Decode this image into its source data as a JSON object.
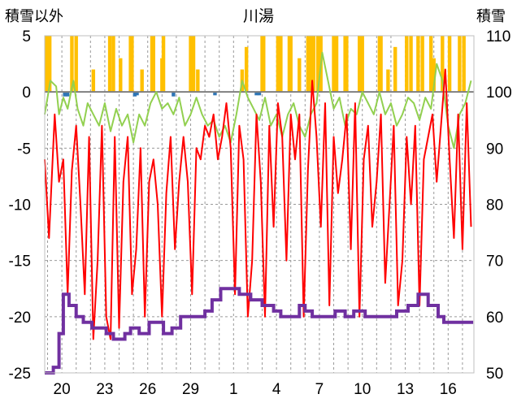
{
  "chart_data": {
    "type": "line",
    "title": "川湯",
    "left_axis_label": "積雪以外",
    "right_axis_label": "積雪",
    "left_ylim": [
      -25,
      5
    ],
    "left_yticks": [
      5,
      0,
      -5,
      -10,
      -15,
      -20,
      -25
    ],
    "right_ylim": [
      50,
      110
    ],
    "right_yticks": [
      110,
      100,
      90,
      80,
      70,
      60,
      50
    ],
    "x_range_days": [
      0,
      30
    ],
    "x_ticks": [
      {
        "day": 1.2,
        "label": "20"
      },
      {
        "day": 4.2,
        "label": "23"
      },
      {
        "day": 7.2,
        "label": "26"
      },
      {
        "day": 10.2,
        "label": "29"
      },
      {
        "day": 13.2,
        "label": "1"
      },
      {
        "day": 16.2,
        "label": "4"
      },
      {
        "day": 19.2,
        "label": "7"
      },
      {
        "day": 22.2,
        "label": "10"
      },
      {
        "day": 25.2,
        "label": "13"
      },
      {
        "day": 28.2,
        "label": "16"
      }
    ],
    "series": [
      {
        "name": "sunshine",
        "axis": "left",
        "style": "bars",
        "color": "#ffc000",
        "x": [
          0.15,
          0.25,
          0.35,
          1.9,
          2.2,
          3.4,
          4.55,
          4.8,
          5.3,
          6.0,
          6.1,
          6.8,
          7.5,
          7.6,
          8.2,
          8.3,
          10.2,
          10.4,
          10.7,
          13.8,
          14.1,
          15.2,
          15.3,
          16.3,
          16.5,
          17.1,
          17.2,
          17.8,
          18.4,
          18.6,
          18.8,
          19.1,
          19.3,
          20.2,
          20.4,
          21.0,
          21.1,
          22.0,
          22.2,
          23.4,
          23.5,
          24.0,
          24.5,
          25.3,
          25.6,
          26.1,
          26.4,
          27.0,
          27.2,
          27.8,
          28.3,
          29.0,
          29.3
        ],
        "values": [
          5,
          5,
          5,
          5,
          5,
          2,
          5,
          5,
          3,
          5,
          5,
          2,
          5,
          5,
          3,
          5,
          5,
          5,
          2,
          2,
          4,
          5,
          5,
          5,
          5,
          5,
          5,
          3,
          5,
          5,
          5,
          5,
          5,
          5,
          5,
          5,
          5,
          5,
          5,
          5,
          5,
          2,
          4,
          5,
          5,
          5,
          5,
          5,
          3,
          5,
          5,
          5,
          5
        ]
      },
      {
        "name": "precipitation",
        "axis": "left",
        "style": "bars",
        "color": "#2e75b6",
        "x": [
          1.4,
          1.6,
          6.3,
          6.45,
          9.0,
          11.9,
          14.8,
          15.0
        ],
        "values": [
          -0.4,
          -0.4,
          -0.4,
          -0.3,
          -0.4,
          -0.3,
          -0.3,
          -0.3
        ]
      },
      {
        "name": "wind_speed",
        "axis": "left",
        "style": "line",
        "color": "#92d050",
        "x": [
          0,
          0.4,
          0.8,
          1.0,
          1.3,
          1.6,
          2.0,
          2.3,
          2.7,
          3.0,
          3.4,
          3.8,
          4.2,
          4.6,
          5.0,
          5.4,
          5.8,
          6.2,
          6.6,
          7.0,
          7.4,
          7.8,
          8.2,
          8.6,
          9.0,
          9.4,
          9.8,
          10.2,
          10.6,
          11.0,
          11.4,
          11.8,
          12.2,
          12.6,
          13.0,
          13.4,
          13.8,
          14.2,
          14.6,
          15.0,
          15.4,
          15.8,
          16.2,
          16.6,
          17.0,
          17.4,
          17.8,
          18.2,
          18.6,
          19.0,
          19.4,
          19.8,
          20.2,
          20.6,
          21.0,
          21.4,
          21.8,
          22.2,
          22.6,
          23.0,
          23.4,
          23.8,
          24.2,
          24.6,
          25.0,
          25.4,
          25.8,
          26.2,
          26.6,
          27.0,
          27.4,
          27.8,
          28.2,
          28.6,
          29.0,
          29.4,
          29.8
        ],
        "values": [
          -2,
          1,
          0.5,
          -2,
          -0.5,
          -1.5,
          1,
          -1.5,
          -3,
          -1,
          -2,
          -3,
          -1,
          -3.5,
          -1.5,
          -3,
          -2,
          -4.5,
          -2,
          -3,
          -1,
          0,
          -1.5,
          -1,
          -2,
          -0.5,
          -3,
          -2,
          -0.5,
          -2,
          -3,
          -2.5,
          -4,
          -3,
          -4.5,
          -2,
          1,
          -0.5,
          -1.5,
          -2.5,
          -0.5,
          -3,
          -2,
          -4,
          -2,
          -1,
          -3,
          -4,
          -2,
          -1,
          3.5,
          1,
          -1.5,
          -0.5,
          -3,
          -1.5,
          -2,
          0,
          -1,
          -2,
          0,
          -2,
          -1,
          -3,
          -2,
          -0.5,
          -1,
          -2.5,
          -0.5,
          -1.5,
          2.5,
          1,
          -3,
          -5,
          -2,
          -1,
          1
        ]
      },
      {
        "name": "temperature",
        "axis": "left",
        "style": "line",
        "color": "#ff0000",
        "x": [
          0,
          0.3,
          0.7,
          1.0,
          1.3,
          1.6,
          1.9,
          2.2,
          2.5,
          2.8,
          3.1,
          3.4,
          3.7,
          4.0,
          4.3,
          4.6,
          4.9,
          5.2,
          5.5,
          5.8,
          6.1,
          6.4,
          6.7,
          7.0,
          7.3,
          7.6,
          7.9,
          8.2,
          8.5,
          8.8,
          9.1,
          9.4,
          9.7,
          10.0,
          10.3,
          10.6,
          10.9,
          11.2,
          11.5,
          11.8,
          12.1,
          12.4,
          12.7,
          13.0,
          13.3,
          13.6,
          13.9,
          14.2,
          14.5,
          14.8,
          15.1,
          15.4,
          15.7,
          16.0,
          16.3,
          16.6,
          16.9,
          17.2,
          17.5,
          17.8,
          18.1,
          18.4,
          18.7,
          19.0,
          19.3,
          19.6,
          19.9,
          20.2,
          20.5,
          20.8,
          21.1,
          21.4,
          21.7,
          22.0,
          22.3,
          22.6,
          22.9,
          23.2,
          23.5,
          23.8,
          24.1,
          24.4,
          24.7,
          25.0,
          25.3,
          25.6,
          25.9,
          26.2,
          26.5,
          26.8,
          27.1,
          27.4,
          27.7,
          28.0,
          28.3,
          28.6,
          28.9,
          29.2,
          29.5,
          29.8
        ],
        "values": [
          -6,
          -13,
          -2,
          -8,
          -6,
          -18,
          -7,
          -3,
          -10,
          -18,
          -4,
          -22,
          -15,
          -3,
          -20,
          -22,
          -4,
          -21,
          -8,
          -4,
          -18,
          -14,
          -5,
          -20,
          -8,
          -6,
          -10,
          -20,
          -9,
          -4,
          -14,
          -8,
          -4,
          -8,
          -18,
          -5,
          -6,
          -3,
          -4,
          -2,
          -6,
          -4,
          -1,
          -5,
          -18,
          -3,
          -6,
          -20,
          -15,
          -2,
          -8,
          -20,
          -3,
          -12,
          -1,
          -4,
          -15,
          -2,
          -6,
          -2,
          -20,
          -7,
          1,
          -4,
          -12,
          -1,
          -19,
          -4,
          -9,
          -6,
          -2,
          -14,
          -1,
          -20,
          -6,
          -3,
          -12,
          -8,
          -2,
          -17,
          -10,
          -3,
          -19,
          -15,
          -4,
          -10,
          -3,
          -19,
          -6,
          -4,
          -2,
          -8,
          -3,
          2,
          -6,
          -13,
          -2,
          -14,
          -1,
          -12
        ]
      },
      {
        "name": "snow_depth",
        "axis": "right",
        "style": "step",
        "color": "#7030a0",
        "x": [
          0,
          0.6,
          1.0,
          1.3,
          1.7,
          2.2,
          2.7,
          3.3,
          4.3,
          4.8,
          5.6,
          6.0,
          6.6,
          7.3,
          8.3,
          8.9,
          9.5,
          10.4,
          11.2,
          11.7,
          12.3,
          13.0,
          13.6,
          14.4,
          15.2,
          16.0,
          16.5,
          17.4,
          17.8,
          18.2,
          18.7,
          19.5,
          20.3,
          21.0,
          21.6,
          22.4,
          23.4,
          24.6,
          25.4,
          26.1,
          26.8,
          27.5,
          27.9,
          28.9,
          29.4
        ],
        "values": [
          50,
          51,
          57,
          64,
          62,
          60,
          59,
          58,
          57,
          56,
          57,
          58,
          57,
          59,
          57,
          58,
          60,
          60,
          61,
          63,
          65,
          65,
          64,
          63,
          62,
          61,
          60,
          60,
          62,
          61,
          60,
          60,
          61,
          60,
          61,
          60,
          60,
          61,
          62,
          64,
          62,
          60,
          59,
          59,
          59
        ]
      }
    ]
  }
}
